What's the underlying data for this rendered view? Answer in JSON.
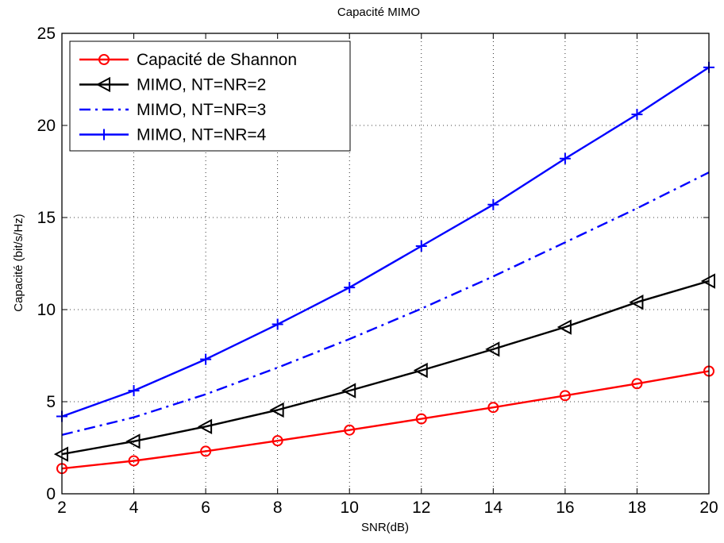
{
  "chart_data": {
    "type": "line",
    "title": "Capacité MIMO",
    "xlabel": "SNR(dB)",
    "ylabel": "Capacité (bit/s/Hz)",
    "xlim": [
      2,
      20
    ],
    "ylim": [
      0,
      25
    ],
    "xticks": [
      2,
      4,
      6,
      8,
      10,
      12,
      14,
      16,
      18,
      20
    ],
    "yticks": [
      0,
      5,
      10,
      15,
      20,
      25
    ],
    "grid": true,
    "legend_position": "top-left",
    "x": [
      2,
      4,
      6,
      8,
      10,
      12,
      14,
      16,
      18,
      20
    ],
    "series": [
      {
        "name": "Capacité de Shannon",
        "color": "#ff0000",
        "line_style": "solid",
        "marker": "circle",
        "values": [
          1.37,
          1.79,
          2.31,
          2.88,
          3.46,
          4.07,
          4.69,
          5.33,
          5.98,
          6.66
        ]
      },
      {
        "name": "MIMO, NT=NR=2",
        "color": "#000000",
        "line_style": "solid",
        "marker": "triangle-left",
        "values": [
          2.15,
          2.85,
          3.65,
          4.55,
          5.6,
          6.7,
          7.85,
          9.05,
          10.4,
          11.55
        ]
      },
      {
        "name": "MIMO, NT=NR=3",
        "color": "#0000ff",
        "line_style": "dash-dot",
        "marker": "none",
        "values": [
          3.2,
          4.15,
          5.4,
          6.85,
          8.4,
          10.05,
          11.8,
          13.65,
          15.5,
          17.45
        ]
      },
      {
        "name": "MIMO, NT=NR=4",
        "color": "#0000ff",
        "line_style": "solid",
        "marker": "plus",
        "values": [
          4.2,
          5.6,
          7.3,
          9.2,
          11.2,
          13.45,
          15.7,
          18.2,
          20.6,
          23.15
        ]
      }
    ]
  }
}
